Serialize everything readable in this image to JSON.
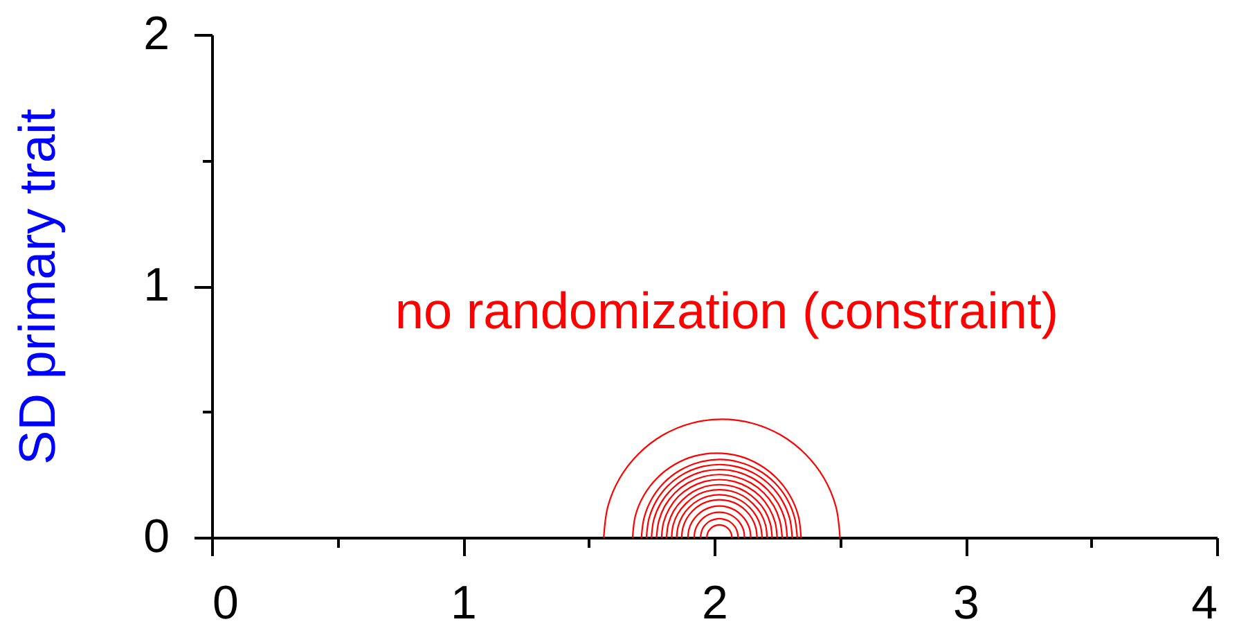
{
  "chart_data": {
    "type": "line",
    "ylabel": "SD primary trait",
    "xlim": [
      0,
      4
    ],
    "ylim": [
      0,
      2
    ],
    "xticks": [
      0,
      {
        "value": 0.5,
        "label": null
      },
      1,
      {
        "value": 1.5,
        "label": null
      },
      2,
      {
        "value": 2.5,
        "label": null
      },
      3,
      {
        "value": 3.5,
        "label": null
      },
      4
    ],
    "yticks": [
      0,
      {
        "value": 0.5,
        "label": null
      },
      1,
      {
        "value": 1.5,
        "label": null
      },
      2
    ],
    "series": [
      {
        "name": "no randomization (constraint)",
        "color": "#ff0000",
        "x": [
          1.56,
          1.576,
          1.623,
          1.698,
          1.795,
          1.908,
          2.03,
          2.152,
          2.265,
          2.362,
          2.437,
          2.484,
          2.5
        ],
        "values": [
          0,
          0.122,
          0.235,
          0.332,
          0.407,
          0.454,
          0.47,
          0.454,
          0.407,
          0.332,
          0.235,
          0.122,
          0
        ]
      },
      {
        "color": "#ff0000",
        "x": [
          1.675,
          1.686,
          1.72,
          1.773,
          1.842,
          1.923,
          2.01,
          2.097,
          2.178,
          2.247,
          2.3,
          2.334,
          2.345
        ],
        "values": [
          0,
          0.087,
          0.168,
          0.237,
          0.29,
          0.324,
          0.335,
          0.324,
          0.29,
          0.237,
          0.168,
          0.087,
          0
        ]
      },
      {
        "color": "#ff0000",
        "x": [
          1.71,
          1.721,
          1.752,
          1.801,
          1.865,
          1.94,
          2.02,
          2.1,
          2.175,
          2.239,
          2.288,
          2.319,
          2.33
        ],
        "values": [
          0,
          0.08,
          0.155,
          0.219,
          0.268,
          0.299,
          0.31,
          0.299,
          0.268,
          0.219,
          0.155,
          0.08,
          0
        ]
      },
      {
        "color": "#ff0000",
        "x": [
          1.73,
          1.74,
          1.769,
          1.815,
          1.875,
          1.945,
          2.02,
          2.095,
          2.165,
          2.225,
          2.271,
          2.3,
          2.31
        ],
        "values": [
          0,
          0.075,
          0.145,
          0.205,
          0.251,
          0.28,
          0.29,
          0.28,
          0.251,
          0.205,
          0.145,
          0.075,
          0
        ]
      },
      {
        "color": "#ff0000",
        "x": [
          1.75,
          1.759,
          1.786,
          1.829,
          1.885,
          1.95,
          2.02,
          2.09,
          2.155,
          2.211,
          2.254,
          2.281,
          2.29
        ],
        "values": [
          0,
          0.07,
          0.135,
          0.191,
          0.234,
          0.261,
          0.27,
          0.261,
          0.234,
          0.191,
          0.135,
          0.07,
          0
        ]
      },
      {
        "color": "#ff0000",
        "x": [
          1.77,
          1.779,
          1.803,
          1.843,
          1.895,
          1.955,
          2.02,
          2.085,
          2.145,
          2.197,
          2.237,
          2.261,
          2.27
        ],
        "values": [
          0,
          0.065,
          0.125,
          0.177,
          0.217,
          0.241,
          0.25,
          0.241,
          0.217,
          0.177,
          0.125,
          0.065,
          0
        ]
      },
      {
        "color": "#ff0000",
        "x": [
          1.79,
          1.798,
          1.821,
          1.857,
          1.905,
          1.96,
          2.02,
          2.08,
          2.135,
          2.183,
          2.219,
          2.242,
          2.25
        ],
        "values": [
          0,
          0.06,
          0.115,
          0.163,
          0.199,
          0.222,
          0.23,
          0.222,
          0.199,
          0.163,
          0.115,
          0.06,
          0
        ]
      },
      {
        "color": "#ff0000",
        "x": [
          1.81,
          1.817,
          1.838,
          1.872,
          1.915,
          1.966,
          2.02,
          2.074,
          2.125,
          2.168,
          2.202,
          2.223,
          2.23
        ],
        "values": [
          0,
          0.054,
          0.105,
          0.148,
          0.182,
          0.203,
          0.21,
          0.203,
          0.182,
          0.148,
          0.105,
          0.054,
          0
        ]
      },
      {
        "color": "#ff0000",
        "x": [
          1.83,
          1.836,
          1.855,
          1.886,
          1.925,
          1.971,
          2.02,
          2.069,
          2.115,
          2.154,
          2.185,
          2.204,
          2.21
        ],
        "values": [
          0,
          0.049,
          0.095,
          0.134,
          0.165,
          0.184,
          0.19,
          0.184,
          0.165,
          0.134,
          0.095,
          0.049,
          0
        ]
      },
      {
        "color": "#ff0000",
        "x": [
          1.85,
          1.856,
          1.873,
          1.9,
          1.935,
          1.976,
          2.02,
          2.064,
          2.105,
          2.14,
          2.167,
          2.184,
          2.19
        ],
        "values": [
          0,
          0.044,
          0.085,
          0.12,
          0.147,
          0.164,
          0.17,
          0.164,
          0.147,
          0.12,
          0.085,
          0.044,
          0
        ]
      },
      {
        "color": "#ff0000",
        "x": [
          1.87,
          1.875,
          1.89,
          1.914,
          1.945,
          1.981,
          2.02,
          2.059,
          2.095,
          2.126,
          2.15,
          2.165,
          2.17
        ],
        "values": [
          0,
          0.039,
          0.075,
          0.106,
          0.13,
          0.145,
          0.15,
          0.145,
          0.13,
          0.106,
          0.075,
          0.039,
          0
        ]
      },
      {
        "color": "#ff0000",
        "x": [
          1.895,
          1.899,
          1.912,
          1.932,
          1.957,
          1.988,
          2.02,
          2.052,
          2.083,
          2.108,
          2.128,
          2.141,
          2.145
        ],
        "values": [
          0,
          0.032,
          0.063,
          0.088,
          0.108,
          0.121,
          0.125,
          0.121,
          0.108,
          0.088,
          0.063,
          0.032,
          0
        ]
      },
      {
        "color": "#ff0000",
        "x": [
          1.92,
          1.923,
          1.933,
          1.949,
          1.97,
          1.994,
          2.02,
          2.046,
          2.07,
          2.091,
          2.107,
          2.117,
          2.12
        ],
        "values": [
          0,
          0.026,
          0.05,
          0.071,
          0.087,
          0.097,
          0.1,
          0.097,
          0.087,
          0.071,
          0.05,
          0.026,
          0
        ]
      },
      {
        "color": "#ff0000",
        "x": [
          1.945,
          1.948,
          1.955,
          1.967,
          1.982,
          2.001,
          2.02,
          2.039,
          2.058,
          2.073,
          2.085,
          2.092,
          2.095
        ],
        "values": [
          0,
          0.019,
          0.038,
          0.053,
          0.065,
          0.072,
          0.075,
          0.072,
          0.065,
          0.053,
          0.038,
          0.019,
          0
        ]
      },
      {
        "color": "#ff0000",
        "x": [
          1.97,
          1.972,
          1.977,
          1.985,
          1.995,
          2.007,
          2.02,
          2.033,
          2.045,
          2.055,
          2.063,
          2.068,
          2.07
        ],
        "values": [
          0,
          0.013,
          0.025,
          0.035,
          0.043,
          0.048,
          0.05,
          0.048,
          0.043,
          0.035,
          0.025,
          0.013,
          0
        ]
      }
    ]
  }
}
